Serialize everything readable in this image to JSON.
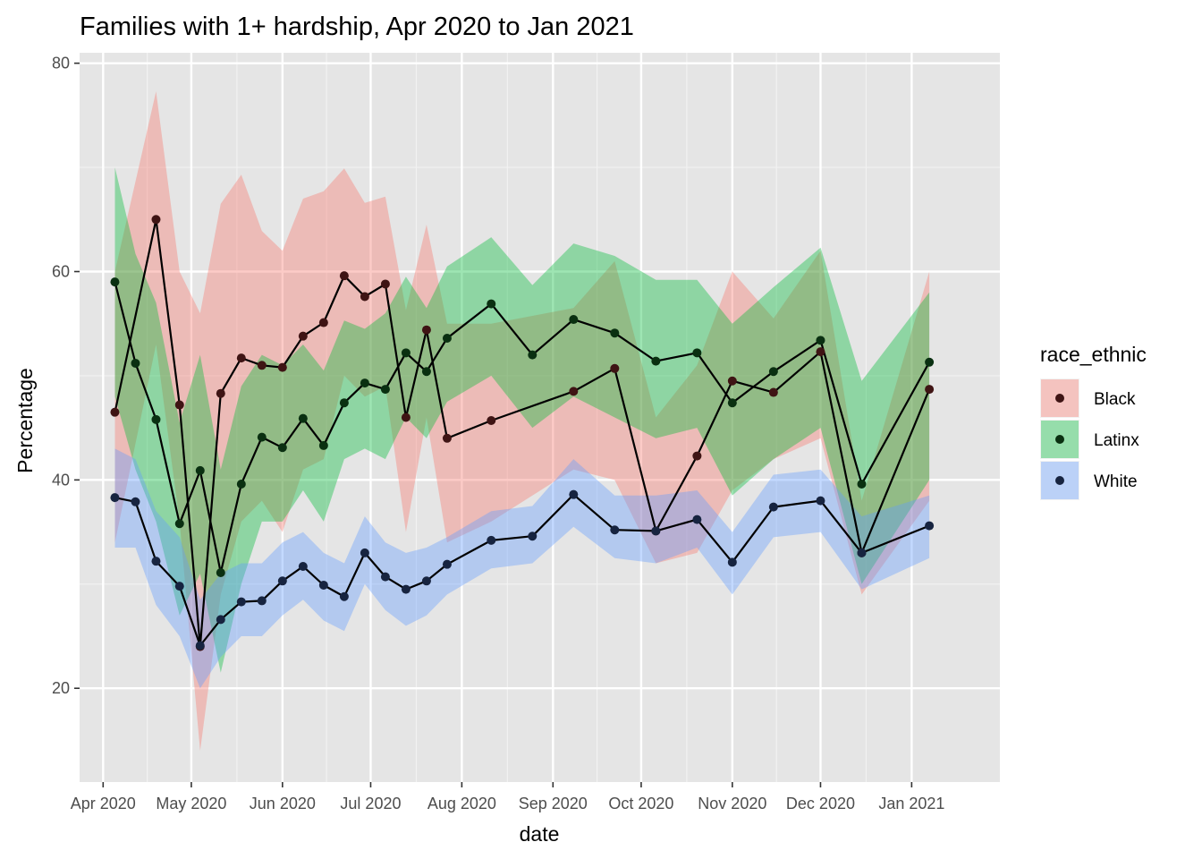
{
  "chart_data": {
    "type": "line",
    "title": "Families with 1+ hardship, Apr 2020 to Jan 2021",
    "xlabel": "date",
    "ylabel": "Percentage",
    "x_type": "date",
    "xlim": [
      "2020-03-24",
      "2021-01-31"
    ],
    "ylim": [
      11,
      81
    ],
    "y_ticks": [
      20,
      40,
      60,
      80
    ],
    "x_ticks": [
      {
        "date": "2020-04-01",
        "label": "Apr 2020"
      },
      {
        "date": "2020-05-01",
        "label": "May 2020"
      },
      {
        "date": "2020-06-01",
        "label": "Jun 2020"
      },
      {
        "date": "2020-07-01",
        "label": "Jul 2020"
      },
      {
        "date": "2020-08-01",
        "label": "Aug 2020"
      },
      {
        "date": "2020-09-01",
        "label": "Sep 2020"
      },
      {
        "date": "2020-10-01",
        "label": "Oct 2020"
      },
      {
        "date": "2020-11-01",
        "label": "Nov 2020"
      },
      {
        "date": "2020-12-01",
        "label": "Dec 2020"
      },
      {
        "date": "2021-01-01",
        "label": "Jan 2021"
      }
    ],
    "grid": true,
    "background": "#e5e5e5",
    "legend": {
      "title": "race_ethnic",
      "position": "right"
    },
    "series": [
      {
        "name": "Black",
        "color": "#f8766d",
        "point_color": "#3f1414",
        "x": [
          "2020-04-05",
          "2020-04-19",
          "2020-04-27",
          "2020-05-04",
          "2020-05-11",
          "2020-05-18",
          "2020-05-25",
          "2020-06-01",
          "2020-06-08",
          "2020-06-15",
          "2020-06-22",
          "2020-06-29",
          "2020-07-06",
          "2020-07-13",
          "2020-07-20",
          "2020-07-27",
          "2020-08-11",
          "2020-09-08",
          "2020-09-22",
          "2020-10-06",
          "2020-10-20",
          "2020-11-01",
          "2020-11-15",
          "2020-12-01",
          "2020-12-15",
          "2021-01-07"
        ],
        "y": [
          46.5,
          65.0,
          47.2,
          24.0,
          48.3,
          51.7,
          51.0,
          50.8,
          53.8,
          55.1,
          59.6,
          57.6,
          58.8,
          46.0,
          54.4,
          44.0,
          45.7,
          48.5,
          50.7,
          35.1,
          42.3,
          49.5,
          48.4,
          52.3,
          33.0,
          48.7
        ],
        "lower": [
          34,
          53,
          36,
          14,
          29,
          36,
          38,
          35,
          41,
          42,
          50,
          48,
          49,
          35,
          46,
          34,
          36,
          41,
          40,
          32,
          33,
          39,
          42,
          44,
          29,
          38
        ],
        "upper": [
          60,
          77.3,
          60,
          56,
          66.5,
          69.3,
          63.9,
          62.0,
          67.0,
          67.7,
          69.9,
          66.6,
          67.2,
          56.3,
          64.5,
          55.0,
          55.0,
          56.5,
          61.0,
          46.0,
          51.0,
          60.0,
          55.5,
          62.0,
          38.0,
          60.0
        ]
      },
      {
        "name": "Latinx",
        "color": "#00ba38",
        "point_color": "#0a3011",
        "x": [
          "2020-04-05",
          "2020-04-12",
          "2020-04-19",
          "2020-04-27",
          "2020-05-04",
          "2020-05-11",
          "2020-05-18",
          "2020-05-25",
          "2020-06-01",
          "2020-06-08",
          "2020-06-15",
          "2020-06-22",
          "2020-06-29",
          "2020-07-06",
          "2020-07-13",
          "2020-07-20",
          "2020-07-27",
          "2020-08-11",
          "2020-08-25",
          "2020-09-08",
          "2020-09-22",
          "2020-10-06",
          "2020-10-20",
          "2020-11-01",
          "2020-11-15",
          "2020-12-01",
          "2020-12-15",
          "2021-01-07"
        ],
        "y": [
          59.0,
          51.2,
          45.8,
          35.8,
          40.9,
          31.1,
          39.6,
          44.1,
          43.1,
          45.9,
          43.3,
          47.4,
          49.3,
          48.7,
          52.2,
          50.4,
          53.6,
          56.9,
          52.0,
          55.4,
          54.1,
          51.4,
          52.2,
          47.4,
          50.4,
          53.4,
          39.6,
          51.3
        ],
        "lower": [
          48,
          41,
          36,
          27,
          31,
          21.5,
          30,
          36,
          36,
          39,
          36,
          42,
          43,
          42,
          46,
          44,
          47.5,
          50,
          45,
          48,
          46,
          44,
          45,
          38.5,
          42,
          45,
          30,
          40
        ],
        "upper": [
          70,
          61.7,
          57.0,
          45.5,
          52.0,
          41.0,
          49.0,
          52.0,
          51.0,
          53.0,
          50.5,
          55.3,
          54.5,
          56.0,
          59.5,
          56.5,
          60.5,
          63.3,
          58.7,
          62.7,
          61.5,
          59.2,
          59.2,
          55.0,
          58.5,
          62.3,
          49.5,
          58.0
        ]
      },
      {
        "name": "White",
        "color": "#619cff",
        "point_color": "#172440",
        "x": [
          "2020-04-05",
          "2020-04-12",
          "2020-04-19",
          "2020-04-27",
          "2020-05-04",
          "2020-05-11",
          "2020-05-18",
          "2020-05-25",
          "2020-06-01",
          "2020-06-08",
          "2020-06-15",
          "2020-06-22",
          "2020-06-29",
          "2020-07-06",
          "2020-07-13",
          "2020-07-20",
          "2020-07-27",
          "2020-08-11",
          "2020-08-25",
          "2020-09-08",
          "2020-09-22",
          "2020-10-06",
          "2020-10-20",
          "2020-11-01",
          "2020-11-15",
          "2020-12-01",
          "2020-12-15",
          "2021-01-07"
        ],
        "y": [
          38.3,
          37.9,
          32.2,
          29.8,
          24.1,
          26.6,
          28.3,
          28.4,
          30.3,
          31.7,
          29.9,
          28.8,
          33.0,
          30.7,
          29.5,
          30.3,
          31.9,
          34.2,
          34.6,
          38.6,
          35.2,
          35.1,
          36.2,
          32.1,
          37.4,
          38.0,
          33.0,
          35.6
        ],
        "lower": [
          33.5,
          33.5,
          28,
          25,
          20,
          23,
          25,
          25,
          27,
          28.5,
          26.5,
          25.5,
          30,
          27.5,
          26,
          27,
          29,
          31.5,
          32,
          35.5,
          32.5,
          32,
          33.5,
          29,
          34.5,
          35,
          29.5,
          32.5
        ],
        "upper": [
          43,
          42,
          37,
          34.5,
          28.5,
          31,
          32,
          32,
          34,
          35,
          33,
          32,
          36.5,
          34,
          33,
          33.5,
          34.5,
          37,
          37.5,
          42,
          38.5,
          38.5,
          39,
          35,
          40.5,
          41,
          36.5,
          38.5
        ]
      }
    ]
  }
}
